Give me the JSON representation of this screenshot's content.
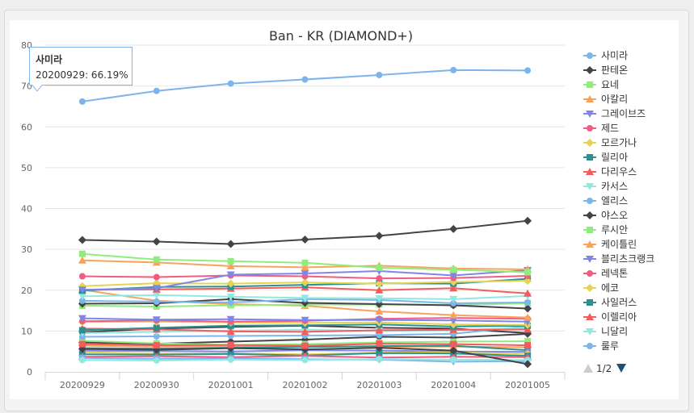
{
  "chart_data": {
    "type": "line",
    "title": "Ban - KR (DIAMOND+)",
    "xlabel": "",
    "ylabel": "",
    "ylim": [
      0,
      80
    ],
    "yticks": [
      0,
      10,
      20,
      30,
      40,
      50,
      60,
      70,
      80
    ],
    "categories": [
      "20200929",
      "20200930",
      "20201001",
      "20201002",
      "20201003",
      "20201004",
      "20201005"
    ],
    "grid": true,
    "legend": "right",
    "series": [
      {
        "name": "사미라",
        "color": "#7cb5ec",
        "marker": "circle",
        "values": [
          66.19,
          68.8,
          70.6,
          71.6,
          72.7,
          73.9,
          73.8
        ]
      },
      {
        "name": "판테온",
        "color": "#434348",
        "marker": "diamond",
        "values": [
          32.3,
          31.9,
          31.3,
          32.4,
          33.3,
          35.0,
          37.0
        ]
      },
      {
        "name": "요네",
        "color": "#90ed7d",
        "marker": "square",
        "values": [
          28.9,
          27.5,
          27.1,
          26.7,
          25.5,
          25.0,
          24.4
        ]
      },
      {
        "name": "아칼리",
        "color": "#f7a35c",
        "marker": "triangle",
        "values": [
          27.3,
          26.8,
          25.9,
          25.6,
          26.0,
          25.3,
          25.1
        ]
      },
      {
        "name": "그레이브즈",
        "color": "#8085e9",
        "marker": "triangle-down",
        "values": [
          20.1,
          20.5,
          23.8,
          24.1,
          24.7,
          23.6,
          24.9
        ]
      },
      {
        "name": "제드",
        "color": "#f15c80",
        "marker": "circle",
        "values": [
          23.4,
          23.2,
          23.6,
          23.4,
          22.9,
          23.0,
          23.5
        ]
      },
      {
        "name": "모르가나",
        "color": "#e4d354",
        "marker": "diamond",
        "values": [
          21.0,
          21.7,
          21.6,
          21.9,
          21.6,
          22.0,
          22.3
        ]
      },
      {
        "name": "릴리아",
        "color": "#2b908f",
        "marker": "square",
        "values": [
          19.9,
          20.8,
          20.9,
          21.3,
          21.7,
          21.6,
          22.8
        ]
      },
      {
        "name": "다리우스",
        "color": "#f45b5b",
        "marker": "triangle",
        "values": [
          20.1,
          20.2,
          20.4,
          20.7,
          20.0,
          20.5,
          19.2
        ]
      },
      {
        "name": "카서스",
        "color": "#91e8e1",
        "marker": "triangle-down",
        "values": [
          18.5,
          18.8,
          18.4,
          18.1,
          18.0,
          17.8,
          18.6
        ]
      },
      {
        "name": "엘리스",
        "color": "#7cb5ec",
        "marker": "circle",
        "values": [
          17.4,
          17.2,
          17.0,
          17.8,
          17.6,
          16.8,
          17.0
        ]
      },
      {
        "name": "야스오",
        "color": "#434348",
        "marker": "diamond",
        "values": [
          16.7,
          16.8,
          17.8,
          16.9,
          16.6,
          16.3,
          15.5
        ]
      },
      {
        "name": "루시안",
        "color": "#90ed7d",
        "marker": "square",
        "values": [
          16.2,
          16.0,
          16.3,
          16.5,
          16.5,
          16.4,
          16.8
        ]
      },
      {
        "name": "케이틀린",
        "color": "#f7a35c",
        "marker": "triangle",
        "values": [
          20.1,
          17.4,
          16.6,
          16.2,
          14.8,
          13.9,
          13.3
        ]
      },
      {
        "name": "블리츠크랭크",
        "color": "#8085e9",
        "marker": "triangle-down",
        "values": [
          13.1,
          12.8,
          12.9,
          12.7,
          12.7,
          12.6,
          12.3
        ]
      },
      {
        "name": "레넥톤",
        "color": "#f15c80",
        "marker": "circle",
        "values": [
          12.4,
          12.6,
          12.3,
          12.5,
          13.0,
          13.2,
          13.0
        ]
      },
      {
        "name": "에코",
        "color": "#e4d354",
        "marker": "diamond",
        "values": [
          12.2,
          12.3,
          12.1,
          12.0,
          12.1,
          11.6,
          11.5
        ]
      },
      {
        "name": "사일러스",
        "color": "#2b908f",
        "marker": "square",
        "values": [
          10.2,
          10.8,
          11.3,
          11.4,
          11.6,
          11.1,
          11.3
        ]
      },
      {
        "name": "이렐리아",
        "color": "#f45b5b",
        "marker": "triangle",
        "values": [
          10.6,
          10.4,
          9.9,
          9.8,
          10.2,
          10.3,
          10.4
        ]
      },
      {
        "name": "니달리",
        "color": "#91e8e1",
        "marker": "triangle-down",
        "values": [
          9.5,
          9.8,
          10.1,
          10.3,
          10.0,
          10.2,
          10.8
        ]
      },
      {
        "name": "룰루",
        "color": "#7cb5ec",
        "marker": "circle",
        "values": [
          8.6,
          8.7,
          8.8,
          8.9,
          9.0,
          9.3,
          11.2
        ]
      }
    ],
    "extra_series": [
      {
        "color": "#434348",
        "values": [
          9.7,
          10.6,
          11.0,
          11.3,
          10.8,
          10.6,
          9.5
        ]
      },
      {
        "color": "#434348",
        "values": [
          7.2,
          6.9,
          7.4,
          7.9,
          8.6,
          8.4,
          9.3
        ]
      },
      {
        "color": "#90ed7d",
        "values": [
          7.6,
          7.0,
          6.6,
          6.8,
          7.2,
          7.4,
          7.5
        ]
      },
      {
        "color": "#f7a35c",
        "values": [
          6.4,
          6.2,
          6.3,
          6.4,
          6.1,
          6.2,
          6.0
        ]
      },
      {
        "color": "#2b908f",
        "values": [
          5.8,
          5.7,
          5.9,
          6.1,
          6.3,
          6.4,
          5.3
        ]
      },
      {
        "color": "#8085e9",
        "values": [
          5.2,
          5.1,
          5.0,
          5.3,
          5.2,
          5.0,
          4.9
        ]
      },
      {
        "color": "#e4d354",
        "values": [
          4.8,
          4.5,
          4.6,
          4.3,
          4.7,
          4.8,
          4.4
        ]
      },
      {
        "color": "#2b908f",
        "values": [
          4.3,
          4.2,
          4.4,
          4.0,
          4.6,
          4.5,
          3.9
        ]
      },
      {
        "color": "#f15c80",
        "values": [
          3.7,
          3.8,
          3.6,
          3.9,
          3.5,
          3.7,
          3.6
        ]
      },
      {
        "color": "#7cb5ec",
        "values": [
          3.4,
          3.2,
          3.3,
          3.1,
          3.0,
          2.5,
          2.6
        ]
      },
      {
        "color": "#91e8e1",
        "values": [
          2.9,
          2.8,
          3.0,
          2.9,
          3.1,
          3.0,
          2.9
        ]
      },
      {
        "color": "#434348",
        "values": [
          5.6,
          5.4,
          5.8,
          5.5,
          5.9,
          5.2,
          1.9
        ]
      },
      {
        "color": "#f45b5b",
        "values": [
          6.8,
          6.5,
          6.6,
          6.4,
          6.9,
          6.8,
          6.5
        ]
      }
    ],
    "tooltip": {
      "title": "사미라",
      "text": "20200929: 66.19%"
    },
    "legend_pager": {
      "text": "1/2"
    }
  }
}
